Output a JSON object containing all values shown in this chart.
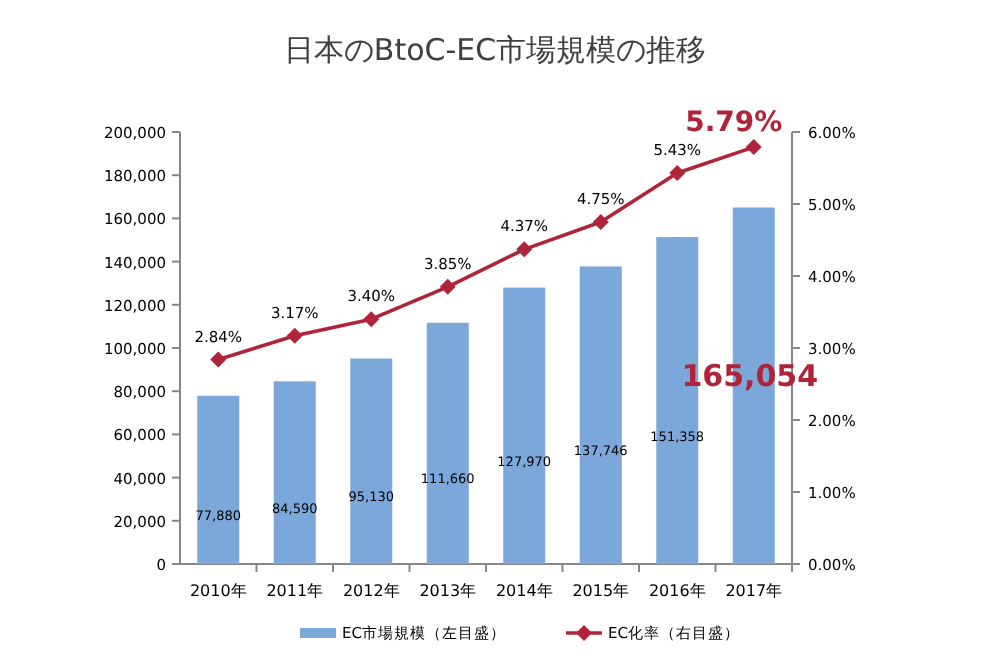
{
  "chart_data": {
    "type": "bar",
    "title": "日本のBtoC-EC市場規模の推移",
    "categories": [
      "2010年",
      "2011年",
      "2012年",
      "2013年",
      "2014年",
      "2015年",
      "2016年",
      "2017年"
    ],
    "series": [
      {
        "name": "EC市場規模（左目盛）",
        "color": "#7ba7db",
        "values": [
          77880,
          84590,
          95130,
          111660,
          127970,
          137746,
          151358,
          165054
        ],
        "value_labels": [
          "77,880",
          "84,590",
          "95,130",
          "111,660",
          "127,970",
          "137,746",
          "151,358",
          "165,054"
        ]
      },
      {
        "name": "EC化率（右目盛）",
        "type": "line",
        "axis": "y2",
        "color": "#b0243a",
        "marker": "diamond",
        "values": [
          2.84,
          3.17,
          3.4,
          3.85,
          4.37,
          4.75,
          5.43,
          5.79
        ],
        "value_labels": [
          "2.84%",
          "3.17%",
          "3.40%",
          "3.85%",
          "4.37%",
          "4.75%",
          "5.43%",
          "5.79%"
        ]
      }
    ],
    "ylim": [
      0,
      200000
    ],
    "yticks": [
      {
        "value": 0,
        "label": "0"
      },
      {
        "value": 20000,
        "label": "20,000"
      },
      {
        "value": 40000,
        "label": "40,000"
      },
      {
        "value": 60000,
        "label": "60,000"
      },
      {
        "value": 80000,
        "label": "80,000"
      },
      {
        "value": 100000,
        "label": "100,000"
      },
      {
        "value": 120000,
        "label": "120,000"
      },
      {
        "value": 140000,
        "label": "140,000"
      },
      {
        "value": 160000,
        "label": "160,000"
      },
      {
        "value": 180000,
        "label": "180,000"
      },
      {
        "value": 200000,
        "label": "200,000"
      }
    ],
    "y2lim": [
      0,
      6
    ],
    "y2ticks": [
      {
        "value": 0,
        "label": "0.00%"
      },
      {
        "value": 1,
        "label": "1.00%"
      },
      {
        "value": 2,
        "label": "2.00%"
      },
      {
        "value": 3,
        "label": "3.00%"
      },
      {
        "value": 4,
        "label": "4.00%"
      },
      {
        "value": 5,
        "label": "5.00%"
      },
      {
        "value": 6,
        "label": "6.00%"
      }
    ],
    "grid": false,
    "legend": "bottom"
  }
}
